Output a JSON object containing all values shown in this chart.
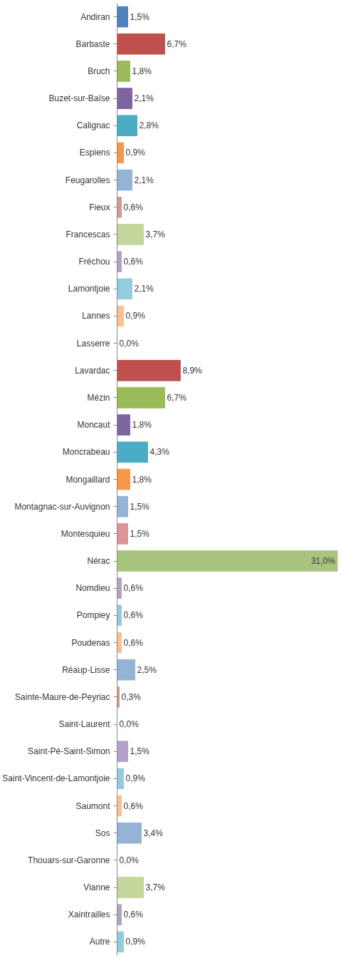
{
  "chart_data": {
    "type": "bar",
    "orientation": "horizontal",
    "grid": false,
    "tick_labels": "y",
    "categories": [
      "Andiran",
      "Barbaste",
      "Bruch",
      "Buzet-sur-Baïse",
      "Calignac",
      "Espiens",
      "Feugarolles",
      "Fieux",
      "Francescas",
      "Fréchou",
      "Lamontjoie",
      "Lannes",
      "Lasserre",
      "Lavardac",
      "Mézin",
      "Moncaut",
      "Moncrabeau",
      "Mongaillard",
      "Montagnac-sur-Auvignon",
      "Montesquieu",
      "Nérac",
      "Nomdieu",
      "Pompiey",
      "Poudenas",
      "Réaup-Lisse",
      "Sainte-Maure-de-Peyriac",
      "Saint-Laurent",
      "Saint-Pé-Saint-Simon",
      "Saint-Vincent-de-Lamontjoie",
      "Saumont",
      "Sos",
      "Thouars-sur-Garonne",
      "Vianne",
      "Xaintrailles",
      "Autre"
    ],
    "values": [
      1.5,
      6.7,
      1.8,
      2.1,
      2.8,
      0.9,
      2.1,
      0.6,
      3.7,
      0.6,
      2.1,
      0.9,
      0.0,
      8.9,
      6.7,
      1.8,
      4.3,
      1.8,
      1.5,
      1.5,
      31.0,
      0.6,
      0.6,
      0.6,
      2.5,
      0.3,
      0.0,
      1.5,
      0.9,
      0.6,
      3.4,
      0.0,
      3.7,
      0.6,
      0.9
    ],
    "value_labels": [
      "1,5%",
      "6,7%",
      "1,8%",
      "2,1%",
      "2,8%",
      "0,9%",
      "2,1%",
      "0,6%",
      "3,7%",
      "0,6%",
      "2,1%",
      "0,9%",
      "0,0%",
      "8,9%",
      "6,7%",
      "1,8%",
      "4,3%",
      "1,8%",
      "1,5%",
      "1,5%",
      "31,0%",
      "0,6%",
      "0,6%",
      "0,6%",
      "2,5%",
      "0,3%",
      "0,0%",
      "1,5%",
      "0,9%",
      "0,6%",
      "3,4%",
      "0,0%",
      "3,7%",
      "0,6%",
      "0,9%"
    ],
    "colors": [
      "#4f81bd",
      "#c0504d",
      "#9bbb59",
      "#8064a2",
      "#4bacc6",
      "#f79646",
      "#95b3d7",
      "#d99694",
      "#c3d69b",
      "#b3a2c7",
      "#93cddd",
      "#fac090",
      "#4f81bd",
      "#c0504d",
      "#9bbb59",
      "#8064a2",
      "#4bacc6",
      "#f79646",
      "#95b3d7",
      "#d99694",
      "#a9c47f",
      "#b3a2c7",
      "#93cddd",
      "#fac090",
      "#95b3d7",
      "#d99694",
      "#c3d69b",
      "#b3a2c7",
      "#93cddd",
      "#fac090",
      "#95b3d7",
      "#d99694",
      "#c3d69b",
      "#b3a2c7",
      "#93cddd"
    ]
  }
}
